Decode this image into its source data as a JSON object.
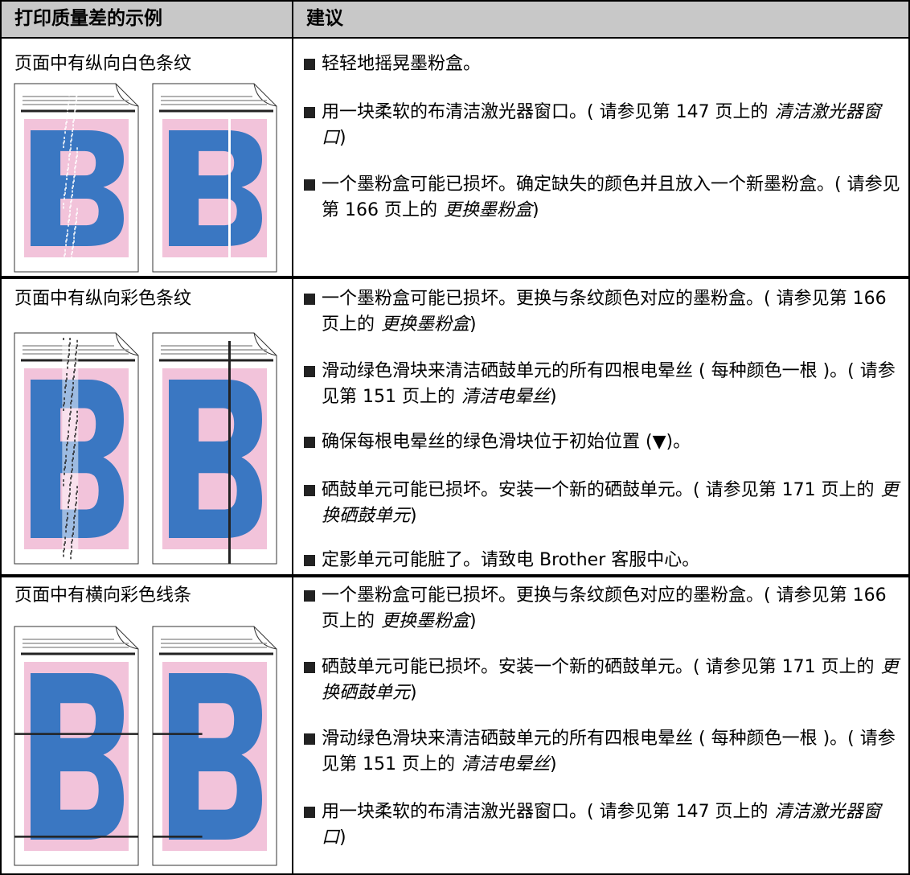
{
  "header": {
    "col1": "打印质量差的示例",
    "col2": "建议"
  },
  "rows": [
    {
      "problem": "页面中有纵向白色条纹",
      "advice": [
        {
          "text": "轻轻地摇晃墨粉盒。"
        },
        {
          "text": "用一块柔软的布清洁激光器窗口。( 请参见第 147 页上的",
          "link": "清洁激光器窗口",
          "suffix": ")"
        },
        {
          "text": "一个墨粉盒可能已损坏。确定缺失的颜色并且放入一个新墨粉盒。( 请参见第 166 页上的",
          "link": "更换墨粉盒",
          "suffix": ")"
        }
      ]
    },
    {
      "problem": "页面中有纵向彩色条纹",
      "advice": [
        {
          "text": "一个墨粉盒可能已损坏。更换与条纹颜色对应的墨粉盒。( 请参见第 166 页上的",
          "link": "更换墨粉盒",
          "suffix": ")"
        },
        {
          "text": "滑动绿色滑块来清洁硒鼓单元的所有四根电晕丝 ( 每种颜色一根 )。( 请参见第 151 页上的",
          "link": "清洁电晕丝",
          "suffix": ")"
        },
        {
          "text": "确保每根电晕丝的绿色滑块位于初始位置 (▼)。"
        },
        {
          "text": "硒鼓单元可能已损坏。安装一个新的硒鼓单元。( 请参见第 171 页上的",
          "link": "更换硒鼓单元",
          "suffix": ")"
        },
        {
          "text": "定影单元可能脏了。请致电 Brother 客服中心。"
        }
      ]
    },
    {
      "problem": "页面中有横向彩色线条",
      "advice": [
        {
          "text": "一个墨粉盒可能已损坏。更换与条纹颜色对应的墨粉盒。( 请参见第 166 页上的",
          "link": "更换墨粉盒",
          "suffix": ")"
        },
        {
          "text": "硒鼓单元可能已损坏。安装一个新的硒鼓单元。( 请参见第 171 页上的",
          "link": "更换硒鼓单元",
          "suffix": ")"
        },
        {
          "text": "滑动绿色滑块来清洁硒鼓单元的所有四根电晕丝 ( 每种颜色一根 )。( 请参见第 151 页上的",
          "link": "清洁电晕丝",
          "suffix": ")"
        },
        {
          "text": "用一块柔软的布清洁激光器窗口。( 请参见第 147 页上的",
          "link": "清洁激光器窗口",
          "suffix": ")"
        }
      ]
    }
  ]
}
